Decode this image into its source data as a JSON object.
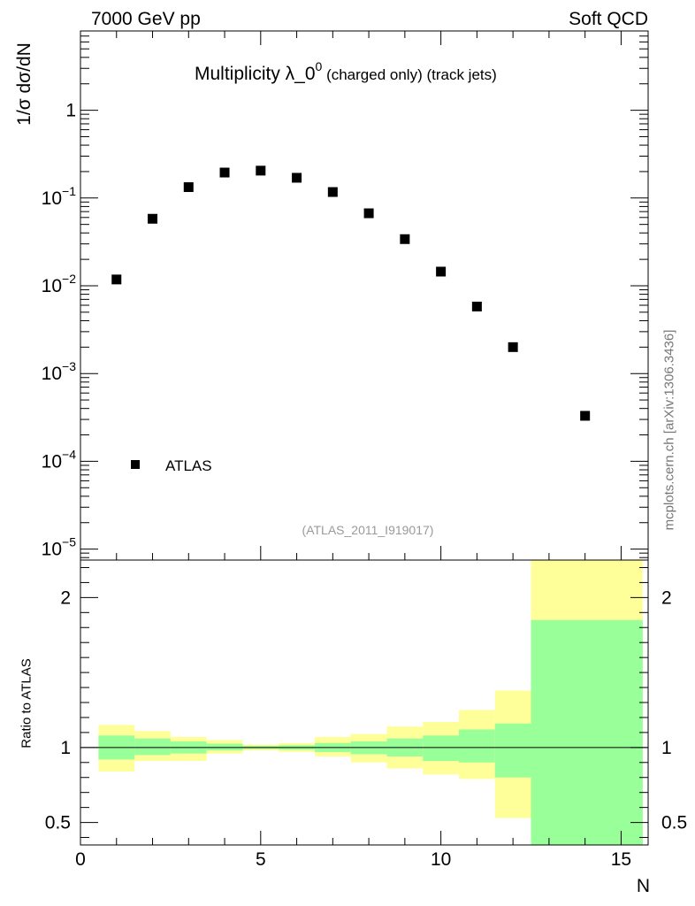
{
  "header": {
    "left": "7000 GeV pp",
    "right": "Soft QCD"
  },
  "title": {
    "main": "Multiplicity λ_0",
    "superscript": "0",
    "suffix": " (charged only) (track jets)"
  },
  "side_label": "mcplots.cern.ch [arXiv:1306.3436]",
  "ref_label": "(ATLAS_2011_I919017)",
  "legend": {
    "entry": "ATLAS"
  },
  "colors": {
    "band_outer": "#ffff99",
    "band_inner": "#99ff99",
    "marker": "#000000",
    "ref_label": "#9a9a9a",
    "side_label": "#777777"
  },
  "chart_data": [
    {
      "type": "scatter",
      "title": "Multiplicity λ_0^0 (charged only) (track jets)",
      "ylabel": "1/σ dσ/dN",
      "yscale": "log",
      "ylim": [
        7.5e-06,
        8
      ],
      "xlim": [
        0,
        15.75
      ],
      "yticks": [
        {
          "value": 1,
          "label": "1"
        },
        {
          "value": 0.1,
          "base": "10",
          "exp": "−1"
        },
        {
          "value": 0.01,
          "base": "10",
          "exp": "−2"
        },
        {
          "value": 0.001,
          "base": "10",
          "exp": "−3"
        },
        {
          "value": 0.0001,
          "base": "10",
          "exp": "−4"
        },
        {
          "value": 1e-05,
          "base": "10",
          "exp": "−5"
        }
      ],
      "series": [
        {
          "name": "ATLAS",
          "x": [
            1,
            2,
            3,
            4,
            5,
            6,
            7,
            8,
            9,
            10,
            11,
            12,
            14
          ],
          "y": [
            0.0118,
            0.058,
            0.133,
            0.195,
            0.205,
            0.17,
            0.117,
            0.067,
            0.034,
            0.0145,
            0.0058,
            0.002,
            0.00033
          ]
        }
      ]
    },
    {
      "type": "area",
      "ylabel": "Ratio to ATLAS",
      "xlabel": "N",
      "xlim": [
        0,
        15.75
      ],
      "ylim": [
        0.35,
        2.25
      ],
      "xticks": [
        0,
        5,
        10,
        15
      ],
      "yticks": [
        0.5,
        1,
        2
      ],
      "reference_line": 1,
      "bins": [
        {
          "x0": 0.5,
          "x1": 1.5,
          "inner": [
            0.92,
            1.08
          ],
          "outer": [
            0.84,
            1.15
          ]
        },
        {
          "x0": 1.5,
          "x1": 2.5,
          "inner": [
            0.95,
            1.06
          ],
          "outer": [
            0.91,
            1.11
          ]
        },
        {
          "x0": 2.5,
          "x1": 3.5,
          "inner": [
            0.96,
            1.04
          ],
          "outer": [
            0.91,
            1.07
          ]
        },
        {
          "x0": 3.5,
          "x1": 4.5,
          "inner": [
            0.98,
            1.025
          ],
          "outer": [
            0.96,
            1.05
          ]
        },
        {
          "x0": 4.5,
          "x1": 5.5,
          "inner": [
            0.99,
            1.01
          ],
          "outer": [
            0.98,
            1.02
          ]
        },
        {
          "x0": 5.5,
          "x1": 6.5,
          "inner": [
            0.985,
            1.015
          ],
          "outer": [
            0.97,
            1.03
          ]
        },
        {
          "x0": 6.5,
          "x1": 7.5,
          "inner": [
            0.97,
            1.03
          ],
          "outer": [
            0.94,
            1.07
          ]
        },
        {
          "x0": 7.5,
          "x1": 8.5,
          "inner": [
            0.955,
            1.04
          ],
          "outer": [
            0.9,
            1.09
          ]
        },
        {
          "x0": 8.5,
          "x1": 9.5,
          "inner": [
            0.94,
            1.06
          ],
          "outer": [
            0.86,
            1.14
          ]
        },
        {
          "x0": 9.5,
          "x1": 10.5,
          "inner": [
            0.91,
            1.08
          ],
          "outer": [
            0.82,
            1.17
          ]
        },
        {
          "x0": 10.5,
          "x1": 11.5,
          "inner": [
            0.9,
            1.12
          ],
          "outer": [
            0.79,
            1.25
          ]
        },
        {
          "x0": 11.5,
          "x1": 12.5,
          "inner": [
            0.8,
            1.16
          ],
          "outer": [
            0.53,
            1.38
          ]
        },
        {
          "x0": 12.5,
          "x1": 15.6,
          "inner": [
            0.35,
            1.85
          ],
          "outer": [
            0.35,
            2.25
          ]
        }
      ]
    }
  ]
}
